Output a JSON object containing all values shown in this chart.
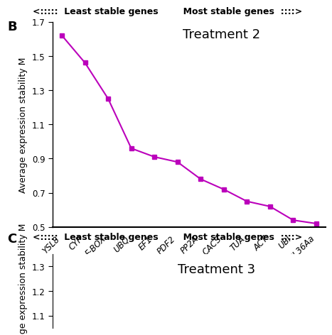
{
  "title_B": "Treatment 2",
  "title_C": "Treatment 3",
  "panel_label_B": "B",
  "panel_label_C": "C",
  "top_label": "<:::::  Least stable genes        Most stable genes  ::::>",
  "bottom_label": "<:::::  Least stable genes        Most stable genes  ::::>",
  "ylabel": "Average expression stability M",
  "x_labels": [
    "YSL8",
    "CYP",
    "F-BOX",
    "UBQ",
    "EF1",
    "PDF2",
    "PP2A",
    "CACS",
    "TUA",
    "ACT",
    "UBI",
    "UBC RPL36Aa"
  ],
  "y_values": [
    1.62,
    1.46,
    1.25,
    0.96,
    0.91,
    0.88,
    0.78,
    0.72,
    0.65,
    0.62,
    0.54,
    0.52
  ],
  "ylim_B": [
    0.5,
    1.7
  ],
  "yticks_B": [
    0.5,
    0.7,
    0.9,
    1.1,
    1.3,
    1.5,
    1.7
  ],
  "ylim_C": [
    1.05,
    1.35
  ],
  "yticks_C": [
    1.1,
    1.2,
    1.3
  ],
  "line_color": "#BB00BB",
  "marker": "s",
  "marker_size": 5,
  "title_fontsize": 13,
  "label_fontsize": 9,
  "tick_fontsize": 8.5,
  "panel_fontsize": 13,
  "header_fontsize": 9
}
